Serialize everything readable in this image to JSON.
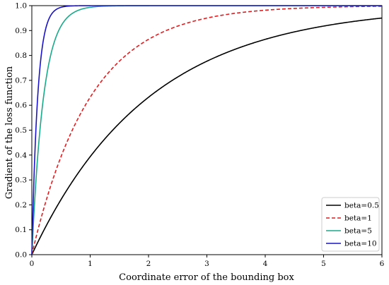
{
  "chart_data": {
    "type": "line",
    "title": "",
    "xlabel": "Coordinate error of the bounding box",
    "ylabel": "Gradient of the loss function",
    "xlim": [
      0,
      6
    ],
    "ylim": [
      0,
      1.0
    ],
    "x_ticks": [
      "0",
      "1",
      "2",
      "3",
      "4",
      "5",
      "6"
    ],
    "y_ticks": [
      "0.0",
      "0.1",
      "0.2",
      "0.3",
      "0.4",
      "0.5",
      "0.6",
      "0.7",
      "0.8",
      "0.9",
      "1.0"
    ],
    "grid": false,
    "legend_position": "bottom-right",
    "formula": "1 - exp(-beta * x)",
    "series": [
      {
        "name": "beta=0.5",
        "beta": 0.5,
        "color": "#000000",
        "dash": "solid",
        "x": [
          0,
          0.5,
          1,
          1.5,
          2,
          2.5,
          3,
          3.5,
          4,
          4.5,
          5,
          5.5,
          6
        ],
        "y": [
          0,
          0.221,
          0.393,
          0.528,
          0.632,
          0.713,
          0.777,
          0.826,
          0.865,
          0.895,
          0.918,
          0.936,
          0.95
        ]
      },
      {
        "name": "beta=1",
        "beta": 1,
        "color": "#e8191c",
        "dash": "dashed",
        "x": [
          0,
          0.5,
          1,
          1.5,
          2,
          2.5,
          3,
          3.5,
          4,
          4.5,
          5,
          5.5,
          6
        ],
        "y": [
          0,
          0.393,
          0.632,
          0.777,
          0.865,
          0.918,
          0.95,
          0.97,
          0.982,
          0.989,
          0.993,
          0.996,
          0.998
        ]
      },
      {
        "name": "beta=5",
        "beta": 5,
        "color": "#1aaa8a",
        "dash": "solid",
        "x": [
          0,
          0.25,
          0.5,
          0.75,
          1,
          1.5,
          2,
          3,
          4,
          5,
          6
        ],
        "y": [
          0,
          0.713,
          0.918,
          0.977,
          0.993,
          0.999,
          1.0,
          1.0,
          1.0,
          1.0,
          1.0
        ]
      },
      {
        "name": "beta=10",
        "beta": 10,
        "color": "#1a13c8",
        "dash": "solid",
        "x": [
          0,
          0.1,
          0.25,
          0.5,
          0.75,
          1,
          2,
          3,
          4,
          5,
          6
        ],
        "y": [
          0,
          0.632,
          0.918,
          0.993,
          0.999,
          1.0,
          1.0,
          1.0,
          1.0,
          1.0,
          1.0
        ]
      }
    ]
  }
}
